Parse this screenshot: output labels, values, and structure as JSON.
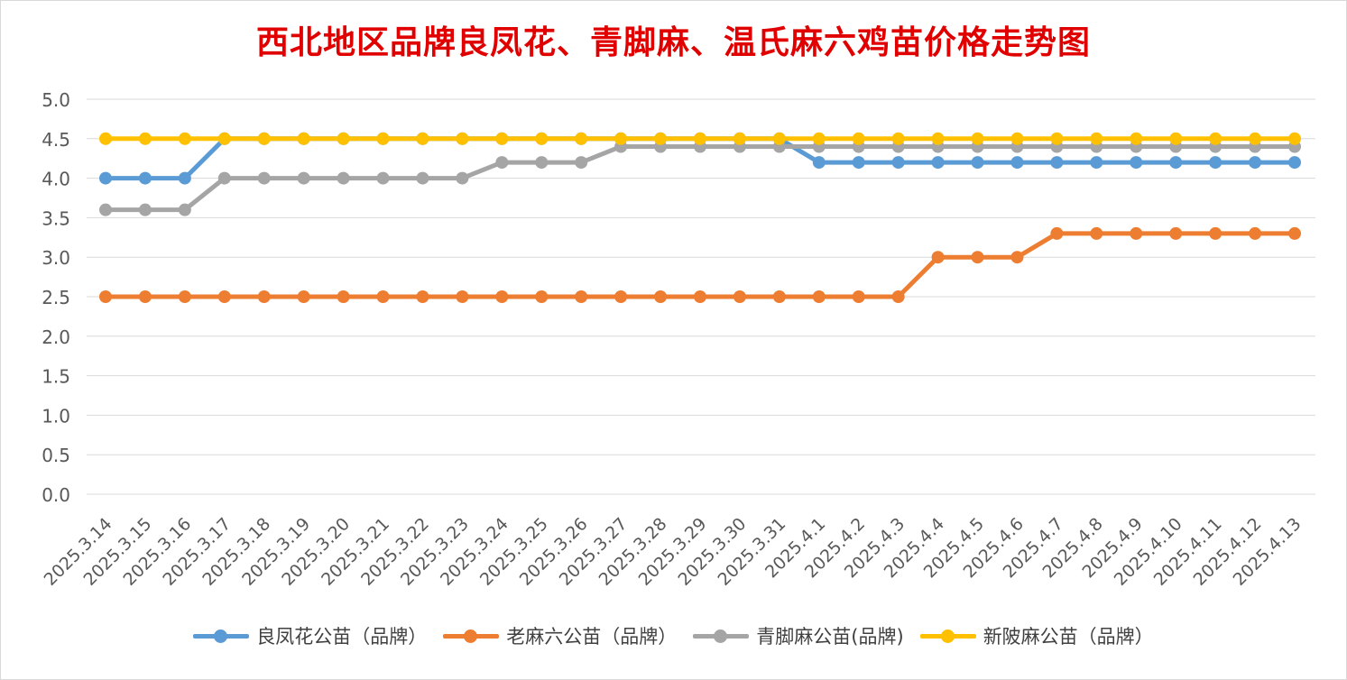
{
  "chart_data": {
    "type": "line",
    "title": "西北地区品牌良凤花、青脚麻、温氏麻六鸡苗价格走势图",
    "xlabel": "",
    "ylabel": "",
    "ylim": [
      0,
      5
    ],
    "yticks": [
      "0.0",
      "0.5",
      "1.0",
      "1.5",
      "2.0",
      "2.5",
      "3.0",
      "3.5",
      "4.0",
      "4.5",
      "5.0"
    ],
    "grid": true,
    "legend_position": "bottom",
    "categories": [
      "2025.3.14",
      "2025.3.15",
      "2025.3.16",
      "2025.3.17",
      "2025.3.18",
      "2025.3.19",
      "2025.3.20",
      "2025.3.21",
      "2025.3.22",
      "2025.3.23",
      "2025.3.24",
      "2025.3.25",
      "2025.3.26",
      "2025.3.27",
      "2025.3.28",
      "2025.3.29",
      "2025.3.30",
      "2025.3.31",
      "2025.4.1",
      "2025.4.2",
      "2025.4.3",
      "2025.4.4",
      "2025.4.5",
      "2025.4.6",
      "2025.4.7",
      "2025.4.8",
      "2025.4.9",
      "2025.4.10",
      "2025.4.11",
      "2025.4.12",
      "2025.4.13"
    ],
    "series": [
      {
        "name": "良凤花公苗（品牌）",
        "color": "#5b9bd5",
        "values": [
          4.0,
          4.0,
          4.0,
          4.5,
          4.5,
          4.5,
          4.5,
          4.5,
          4.5,
          4.5,
          4.5,
          4.5,
          4.5,
          4.5,
          4.5,
          4.5,
          4.5,
          4.5,
          4.2,
          4.2,
          4.2,
          4.2,
          4.2,
          4.2,
          4.2,
          4.2,
          4.2,
          4.2,
          4.2,
          4.2,
          4.2
        ]
      },
      {
        "name": "老麻六公苗（品牌）",
        "color": "#ed7d31",
        "values": [
          2.5,
          2.5,
          2.5,
          2.5,
          2.5,
          2.5,
          2.5,
          2.5,
          2.5,
          2.5,
          2.5,
          2.5,
          2.5,
          2.5,
          2.5,
          2.5,
          2.5,
          2.5,
          2.5,
          2.5,
          2.5,
          3.0,
          3.0,
          3.0,
          3.3,
          3.3,
          3.3,
          3.3,
          3.3,
          3.3,
          3.3
        ]
      },
      {
        "name": "青脚麻公苗(品牌)",
        "color": "#a5a5a5",
        "values": [
          3.6,
          3.6,
          3.6,
          4.0,
          4.0,
          4.0,
          4.0,
          4.0,
          4.0,
          4.0,
          4.2,
          4.2,
          4.2,
          4.4,
          4.4,
          4.4,
          4.4,
          4.4,
          4.4,
          4.4,
          4.4,
          4.4,
          4.4,
          4.4,
          4.4,
          4.4,
          4.4,
          4.4,
          4.4,
          4.4,
          4.4
        ]
      },
      {
        "name": "新陂麻公苗（品牌）",
        "color": "#ffc000",
        "values": [
          4.5,
          4.5,
          4.5,
          4.5,
          4.5,
          4.5,
          4.5,
          4.5,
          4.5,
          4.5,
          4.5,
          4.5,
          4.5,
          4.5,
          4.5,
          4.5,
          4.5,
          4.5,
          4.5,
          4.5,
          4.5,
          4.5,
          4.5,
          4.5,
          4.5,
          4.5,
          4.5,
          4.5,
          4.5,
          4.5,
          4.5
        ]
      }
    ]
  }
}
